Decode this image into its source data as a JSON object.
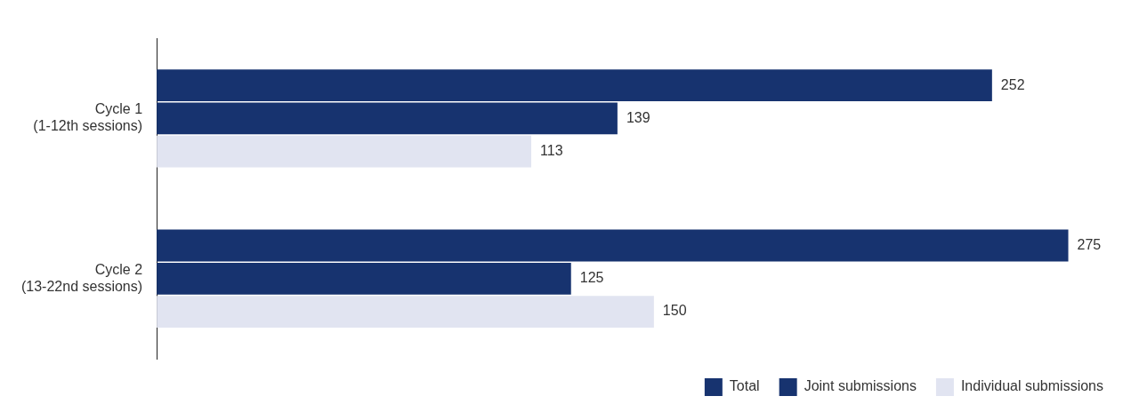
{
  "chart_data": {
    "type": "bar",
    "orientation": "horizontal",
    "categories": [
      "Cycle 1 (1-12th sessions)",
      "Cycle 2 (13-22nd sessions)"
    ],
    "series": [
      {
        "name": "Total",
        "color": "#17336f",
        "values": [
          252,
          275
        ]
      },
      {
        "name": "Joint submissions",
        "color": "#17336f",
        "values": [
          139,
          125
        ]
      },
      {
        "name": "Individual submissions",
        "color": "#e1e4f1",
        "values": [
          113,
          150
        ]
      }
    ],
    "data_labels": true,
    "legend": "bottom right",
    "grid": false
  }
}
